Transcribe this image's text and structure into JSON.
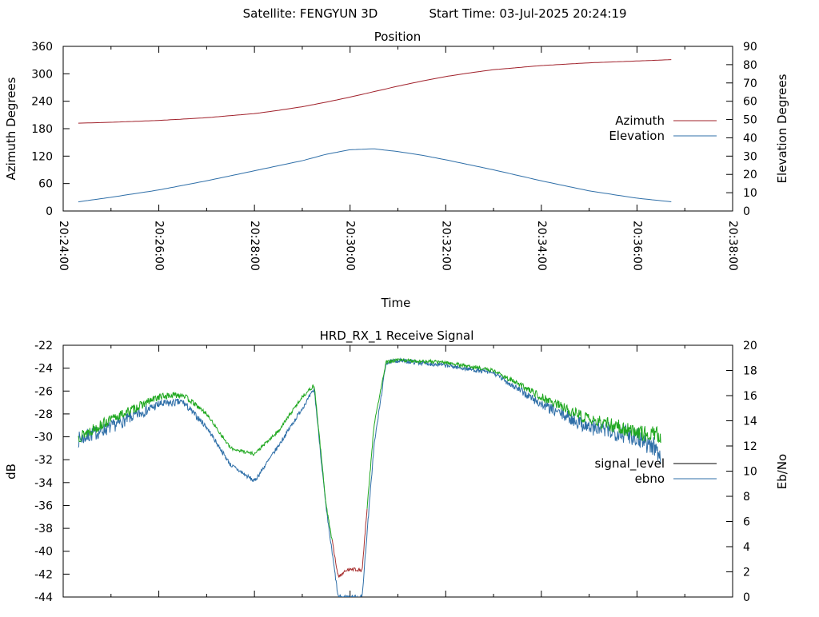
{
  "header": {
    "satellite": "Satellite: FENGYUN 3D",
    "start_time": "Start Time: 03-Jul-2025 20:24:19"
  },
  "colors": {
    "azimuth": "#a0202a",
    "elevation": "#2f6fa8",
    "signal_level": "#1fa81f",
    "signal_low": "#a83030",
    "ebno": "#2f6fa8",
    "legend_signal_level": "#000000"
  },
  "chart_data": [
    {
      "type": "line",
      "title": "Position",
      "xlabel": "Time",
      "ylabel": "Azimuth Degrees",
      "y2label": "Elevation Degrees",
      "x_ticks": [
        "20:24:00",
        "20:26:00",
        "20:28:00",
        "20:30:00",
        "20:32:00",
        "20:34:00",
        "20:36:00",
        "20:38:00"
      ],
      "xlim": [
        "20:24:00",
        "20:38:00"
      ],
      "ylim": [
        0,
        360
      ],
      "y_ticks": [
        0,
        60,
        120,
        180,
        240,
        300,
        360
      ],
      "y2lim": [
        0,
        90
      ],
      "y2_ticks": [
        0,
        10,
        20,
        30,
        40,
        50,
        60,
        70,
        80,
        90
      ],
      "grid": false,
      "legend": "right",
      "series": [
        {
          "name": "Azimuth",
          "axis": "y",
          "x": [
            "20:24:19",
            "20:25:00",
            "20:26:00",
            "20:27:00",
            "20:28:00",
            "20:28:30",
            "20:29:00",
            "20:29:30",
            "20:30:00",
            "20:30:30",
            "20:31:00",
            "20:31:30",
            "20:32:00",
            "20:32:30",
            "20:33:00",
            "20:34:00",
            "20:35:00",
            "20:36:00",
            "20:36:44"
          ],
          "values": [
            192,
            194,
            198,
            204,
            213,
            220,
            228,
            238,
            249,
            261,
            273,
            284,
            294,
            302,
            309,
            318,
            324,
            328,
            331
          ]
        },
        {
          "name": "Elevation",
          "axis": "y2",
          "x": [
            "20:24:19",
            "20:25:00",
            "20:26:00",
            "20:27:00",
            "20:28:00",
            "20:29:00",
            "20:29:30",
            "20:30:00",
            "20:30:30",
            "20:31:00",
            "20:31:30",
            "20:32:00",
            "20:33:00",
            "20:34:00",
            "20:35:00",
            "20:36:00",
            "20:36:44"
          ],
          "values": [
            5,
            7.5,
            11.5,
            16.5,
            22,
            27.5,
            31,
            33.5,
            34,
            32.5,
            30.5,
            28,
            22.5,
            16.5,
            11,
            7,
            5
          ]
        }
      ]
    },
    {
      "type": "line",
      "title": "HRD_RX_1 Receive Signal",
      "xlabel": "",
      "ylabel": "dB",
      "y2label": "Eb/No",
      "xlim": [
        "20:24:00",
        "20:38:00"
      ],
      "ylim": [
        -44,
        -22
      ],
      "y_ticks": [
        -44,
        -42,
        -40,
        -38,
        -36,
        -34,
        -32,
        -30,
        -28,
        -26,
        -24,
        -22
      ],
      "y2lim": [
        0,
        20
      ],
      "y2_ticks": [
        0,
        2,
        4,
        6,
        8,
        10,
        12,
        14,
        16,
        18,
        20
      ],
      "grid": false,
      "legend": "right",
      "series": [
        {
          "name": "signal_level",
          "axis": "y",
          "x": [
            "20:24:19",
            "20:25:00",
            "20:26:00",
            "20:26:30",
            "20:27:00",
            "20:27:30",
            "20:28:00",
            "20:28:30",
            "20:29:00",
            "20:29:15",
            "20:29:30",
            "20:29:45",
            "20:30:00",
            "20:30:15",
            "20:30:30",
            "20:30:45",
            "20:31:00",
            "20:32:00",
            "20:33:00",
            "20:34:00",
            "20:35:00",
            "20:36:00",
            "20:36:30"
          ],
          "values": [
            -30,
            -28.5,
            -26.5,
            -26.3,
            -28,
            -31,
            -31.5,
            -29.5,
            -26.5,
            -25.5,
            -36,
            -42.2,
            -41.5,
            -41.7,
            -29,
            -23.5,
            -23.3,
            -23.5,
            -24.2,
            -26.5,
            -28.5,
            -29.5,
            -30
          ]
        },
        {
          "name": "ebno",
          "axis": "y2",
          "x": [
            "20:24:19",
            "20:25:00",
            "20:26:00",
            "20:26:30",
            "20:27:00",
            "20:27:30",
            "20:28:00",
            "20:28:30",
            "20:29:00",
            "20:29:15",
            "20:29:30",
            "20:29:45",
            "20:30:00",
            "20:30:15",
            "20:30:30",
            "20:30:45",
            "20:31:00",
            "20:32:00",
            "20:33:00",
            "20:34:00",
            "20:35:00",
            "20:36:00",
            "20:36:30"
          ],
          "values": [
            12.5,
            13.5,
            15.3,
            15.5,
            13.5,
            10.5,
            9.2,
            12,
            15,
            16.5,
            7,
            0,
            0,
            0,
            12,
            18.6,
            18.8,
            18.4,
            17.8,
            15.3,
            13.5,
            12.8,
            11.5
          ]
        }
      ]
    }
  ]
}
